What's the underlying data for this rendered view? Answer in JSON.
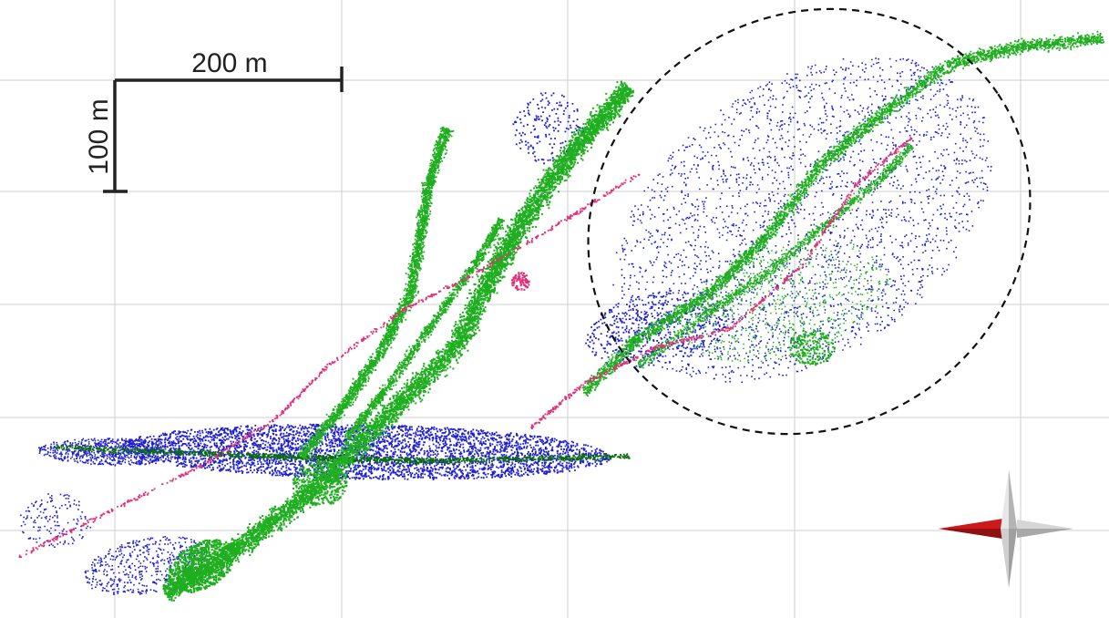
{
  "scale_bar": {
    "horizontal_label": "200 m",
    "vertical_label": "100 m"
  },
  "colors": {
    "background": "#ffffff",
    "grid": "#cfcfcf",
    "green_points": "#1fae1f",
    "dark_green_points": "#0c6d10",
    "blue_points": "#1f1fd0",
    "pink_points": "#e0307a",
    "north_arrow_red": "#cc1a1a",
    "north_arrow_grey": "#9a9a9a"
  },
  "overlays": {
    "highlight_region": "dashed-ellipse"
  },
  "icons": {
    "compass": "north-arrow-icon"
  }
}
